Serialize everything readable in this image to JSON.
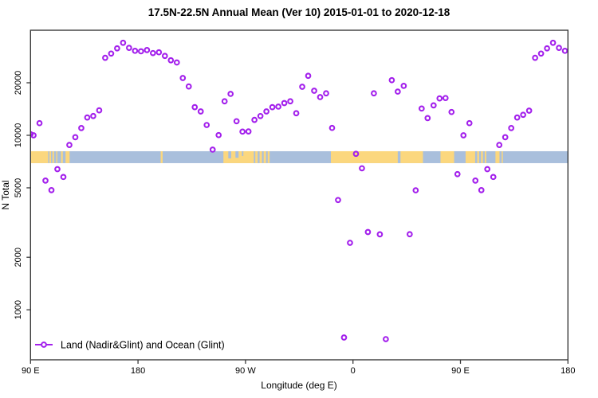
{
  "chart_data": {
    "type": "scatter",
    "title": "17.5N-22.5N Annual Mean (Ver 10)   2015-01-01 to 2020-12-18",
    "xlabel": "Longitude (deg E)",
    "ylabel": "N Total",
    "legend": {
      "label": "Land (Nadir&Glint) and Ocean (Glint)",
      "position": "bottom-left"
    },
    "axes": {
      "x_range_deg": [
        90,
        540
      ],
      "y_scale": "log10",
      "y_range": [
        517,
        40000
      ],
      "x_ticks": [
        {
          "lon": 90,
          "label": "90 E"
        },
        {
          "lon": 180,
          "label": "180"
        },
        {
          "lon": 270,
          "label": "90 W"
        },
        {
          "lon": 360,
          "label": "0"
        },
        {
          "lon": 450,
          "label": "90 E"
        },
        {
          "lon": 540,
          "label": "180"
        }
      ],
      "y_ticks": [
        {
          "value": 1000,
          "label": "1000"
        },
        {
          "value": 2000,
          "label": "2000"
        },
        {
          "value": 5000,
          "label": "5000"
        },
        {
          "value": 10000,
          "label": "10000"
        },
        {
          "value": 20000,
          "label": "20000"
        }
      ],
      "grid": false
    },
    "colors": {
      "marker": "#A320EC",
      "ocean_band": "#A9BFDC",
      "land_band": "#FBD77E",
      "axis": "#3a3a3a"
    },
    "surface_band": {
      "description": "land/ocean mask strip for 17.5N-22.5N",
      "value_top": 8105,
      "value_bottom": 6925,
      "land_segments_deg": [
        [
          90,
          104.8
        ],
        [
          105.8,
          107.2
        ],
        [
          108.3,
          109.7
        ],
        [
          111.5,
          112.4
        ],
        [
          115.5,
          117.0
        ],
        [
          119.3,
          122.7
        ],
        [
          199.0,
          200.6
        ],
        [
          251.5,
          277.0
        ],
        [
          278.2,
          280.2
        ],
        [
          281.8,
          283.8
        ],
        [
          285.2,
          287.2
        ],
        [
          288.6,
          290.2
        ],
        [
          341.5,
          397.5
        ],
        [
          399.8,
          418.6
        ],
        [
          433.3,
          444.7
        ],
        [
          454.3,
          462.3
        ],
        [
          464.0,
          465.6
        ],
        [
          467.2,
          468.8
        ],
        [
          470.3,
          471.6
        ],
        [
          479.3,
          482.7
        ],
        [
          484.5,
          485.5
        ]
      ],
      "ocean_notches_deg": [
        {
          "lon": [
            255.6,
            258.0
          ],
          "frac": 0.6
        },
        {
          "lon": [
            261.6,
            264.2
          ],
          "frac": 0.55
        },
        {
          "lon": [
            267.0,
            268.2
          ],
          "frac": 0.4
        }
      ]
    },
    "series": [
      {
        "name": "Land (Nadir&Glint) and Ocean (Glint)",
        "marker": "open-circle",
        "points": [
          {
            "lon": 90,
            "n": 10150
          },
          {
            "lon": 92.5,
            "n": 10000
          },
          {
            "lon": 97.5,
            "n": 11740
          },
          {
            "lon": 102.5,
            "n": 5500
          },
          {
            "lon": 107.5,
            "n": 4850
          },
          {
            "lon": 112.5,
            "n": 6400
          },
          {
            "lon": 117.5,
            "n": 5770
          },
          {
            "lon": 122.5,
            "n": 8800
          },
          {
            "lon": 127.5,
            "n": 9750
          },
          {
            "lon": 132.5,
            "n": 11000
          },
          {
            "lon": 137.5,
            "n": 12650
          },
          {
            "lon": 142.5,
            "n": 12900
          },
          {
            "lon": 147.5,
            "n": 13900
          },
          {
            "lon": 152.5,
            "n": 27800
          },
          {
            "lon": 157.5,
            "n": 29400
          },
          {
            "lon": 162.5,
            "n": 31500
          },
          {
            "lon": 167.5,
            "n": 33900
          },
          {
            "lon": 172.5,
            "n": 31700
          },
          {
            "lon": 177.5,
            "n": 30500
          },
          {
            "lon": 182.5,
            "n": 30300
          },
          {
            "lon": 187.5,
            "n": 30800
          },
          {
            "lon": 192.5,
            "n": 29600
          },
          {
            "lon": 197.5,
            "n": 29900
          },
          {
            "lon": 202.5,
            "n": 28500
          },
          {
            "lon": 207.5,
            "n": 26900
          },
          {
            "lon": 212.5,
            "n": 26150
          },
          {
            "lon": 217.5,
            "n": 21300
          },
          {
            "lon": 222.5,
            "n": 19050
          },
          {
            "lon": 227.5,
            "n": 14500
          },
          {
            "lon": 232.5,
            "n": 13700
          },
          {
            "lon": 237.5,
            "n": 11455
          },
          {
            "lon": 242.5,
            "n": 8280
          },
          {
            "lon": 247.5,
            "n": 10030
          },
          {
            "lon": 252.5,
            "n": 15660
          },
          {
            "lon": 257.5,
            "n": 17270
          },
          {
            "lon": 262.5,
            "n": 12040
          },
          {
            "lon": 267.5,
            "n": 10500
          },
          {
            "lon": 272.5,
            "n": 10520
          },
          {
            "lon": 277.5,
            "n": 12250
          },
          {
            "lon": 282.5,
            "n": 12890
          },
          {
            "lon": 287.5,
            "n": 13700
          },
          {
            "lon": 292.5,
            "n": 14500
          },
          {
            "lon": 297.5,
            "n": 14600
          },
          {
            "lon": 302.5,
            "n": 15300
          },
          {
            "lon": 307.5,
            "n": 15660
          },
          {
            "lon": 312.5,
            "n": 13380
          },
          {
            "lon": 317.5,
            "n": 18970
          },
          {
            "lon": 322.5,
            "n": 21920
          },
          {
            "lon": 327.5,
            "n": 18010
          },
          {
            "lon": 332.5,
            "n": 16560
          },
          {
            "lon": 337.5,
            "n": 17400
          },
          {
            "lon": 342.5,
            "n": 11025
          },
          {
            "lon": 347.5,
            "n": 4256
          },
          {
            "lon": 352.5,
            "n": 694
          },
          {
            "lon": 357.5,
            "n": 2420
          },
          {
            "lon": 362.5,
            "n": 7830
          },
          {
            "lon": 367.5,
            "n": 6470
          },
          {
            "lon": 372.5,
            "n": 2790
          },
          {
            "lon": 377.5,
            "n": 17400
          },
          {
            "lon": 382.5,
            "n": 2708
          },
          {
            "lon": 387.5,
            "n": 679
          },
          {
            "lon": 392.5,
            "n": 20700
          },
          {
            "lon": 397.5,
            "n": 17800
          },
          {
            "lon": 402.5,
            "n": 19200
          },
          {
            "lon": 407.5,
            "n": 2710
          },
          {
            "lon": 412.5,
            "n": 4840
          },
          {
            "lon": 417.5,
            "n": 14240
          },
          {
            "lon": 422.5,
            "n": 12550
          },
          {
            "lon": 427.5,
            "n": 14840
          },
          {
            "lon": 432.5,
            "n": 16270
          },
          {
            "lon": 437.5,
            "n": 16350
          },
          {
            "lon": 442.5,
            "n": 13600
          },
          {
            "lon": 447.5,
            "n": 5990
          },
          {
            "lon": 452.5,
            "n": 10000
          },
          {
            "lon": 457.5,
            "n": 11740
          },
          {
            "lon": 462.5,
            "n": 5500
          },
          {
            "lon": 467.5,
            "n": 4850
          },
          {
            "lon": 472.5,
            "n": 6400
          },
          {
            "lon": 477.5,
            "n": 5770
          },
          {
            "lon": 482.5,
            "n": 8800
          },
          {
            "lon": 487.5,
            "n": 9750
          },
          {
            "lon": 492.5,
            "n": 11000
          },
          {
            "lon": 497.5,
            "n": 12650
          },
          {
            "lon": 502.5,
            "n": 13100
          },
          {
            "lon": 507.5,
            "n": 13850
          },
          {
            "lon": 512.5,
            "n": 27800
          },
          {
            "lon": 517.5,
            "n": 29400
          },
          {
            "lon": 522.5,
            "n": 31500
          },
          {
            "lon": 527.5,
            "n": 33900
          },
          {
            "lon": 532.5,
            "n": 31700
          },
          {
            "lon": 537.5,
            "n": 30500
          }
        ]
      }
    ]
  }
}
